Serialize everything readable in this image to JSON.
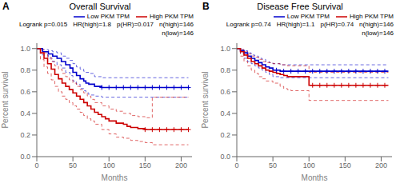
{
  "chart_data": [
    {
      "type": "step",
      "panel_label": "A",
      "title": "Overall Survival",
      "x_label": "Months",
      "y_label": "Percent survival",
      "xlim": [
        0,
        215
      ],
      "ylim": [
        0.0,
        1.05
      ],
      "xticks": [
        0,
        50,
        100,
        150,
        200
      ],
      "yticks": [
        {
          "value": 0.0,
          "label": "0.0"
        },
        0.2,
        0.4,
        0.6,
        0.8,
        {
          "value": 1.0,
          "label": "1.0"
        }
      ],
      "legend": "upper right",
      "annotations": [
        "Logrank p=0.015",
        "HR(high)=1.8",
        "p(HR)=0.017",
        "n(high)=146",
        "n(low)=146"
      ],
      "series": [
        {
          "color": "#0000cc",
          "line_style": "dashed",
          "x": [
            0,
            8,
            16,
            22,
            28,
            34,
            40,
            46,
            50,
            55,
            60,
            65,
            68,
            72,
            80,
            90,
            210
          ],
          "values": [
            1.0,
            0.99,
            0.98,
            0.97,
            0.96,
            0.93,
            0.91,
            0.89,
            0.86,
            0.83,
            0.81,
            0.79,
            0.78,
            0.77,
            0.74,
            0.73,
            0.73
          ]
        },
        {
          "color": "#0000cc",
          "line_style": "dashed",
          "x": [
            0,
            8,
            16,
            22,
            28,
            34,
            40,
            46,
            50,
            55,
            60,
            65,
            68,
            72,
            80,
            90,
            210
          ],
          "values": [
            1.0,
            0.94,
            0.91,
            0.88,
            0.85,
            0.82,
            0.78,
            0.75,
            0.7,
            0.67,
            0.63,
            0.61,
            0.59,
            0.57,
            0.56,
            0.55,
            0.55
          ]
        },
        {
          "color": "#cc0000",
          "line_style": "dashed",
          "x": [
            0,
            5,
            10,
            15,
            20,
            25,
            30,
            35,
            40,
            45,
            50,
            55,
            60,
            65,
            70,
            75,
            80,
            90,
            100,
            110,
            120,
            130,
            140,
            150,
            160,
            210
          ],
          "values": [
            1.0,
            0.99,
            0.96,
            0.92,
            0.88,
            0.84,
            0.81,
            0.77,
            0.74,
            0.71,
            0.68,
            0.65,
            0.62,
            0.59,
            0.56,
            0.53,
            0.5,
            0.47,
            0.44,
            0.42,
            0.4,
            0.38,
            0.37,
            0.36,
            0.55,
            0.55
          ]
        },
        {
          "color": "#cc0000",
          "line_style": "dashed",
          "x": [
            0,
            5,
            10,
            15,
            20,
            25,
            30,
            35,
            40,
            45,
            50,
            55,
            60,
            65,
            70,
            75,
            80,
            90,
            100,
            110,
            120,
            130,
            140,
            150,
            160,
            210
          ],
          "values": [
            1.0,
            0.9,
            0.83,
            0.77,
            0.71,
            0.65,
            0.6,
            0.56,
            0.53,
            0.5,
            0.47,
            0.44,
            0.41,
            0.38,
            0.35,
            0.33,
            0.3,
            0.25,
            0.21,
            0.18,
            0.17,
            0.15,
            0.14,
            0.13,
            0.11,
            0.11
          ]
        },
        {
          "name": "Low PKM TPM",
          "color": "#0000cc",
          "line_style": "solid",
          "x": [
            0,
            8,
            16,
            22,
            28,
            34,
            40,
            46,
            50,
            55,
            60,
            65,
            68,
            72,
            80,
            90,
            210
          ],
          "values": [
            1.0,
            0.97,
            0.95,
            0.93,
            0.91,
            0.88,
            0.85,
            0.82,
            0.78,
            0.75,
            0.72,
            0.7,
            0.68,
            0.67,
            0.65,
            0.64,
            0.64
          ]
        },
        {
          "name": "High PKM TPM",
          "color": "#cc0000",
          "line_style": "solid",
          "x": [
            0,
            5,
            10,
            15,
            20,
            25,
            30,
            35,
            40,
            45,
            50,
            55,
            60,
            65,
            70,
            75,
            80,
            85,
            90,
            95,
            100,
            110,
            120,
            125,
            130,
            140,
            150,
            160,
            210
          ],
          "values": [
            1.0,
            0.96,
            0.91,
            0.86,
            0.81,
            0.76,
            0.72,
            0.68,
            0.65,
            0.62,
            0.59,
            0.56,
            0.53,
            0.5,
            0.47,
            0.44,
            0.41,
            0.39,
            0.37,
            0.35,
            0.33,
            0.31,
            0.3,
            0.28,
            0.27,
            0.26,
            0.25,
            0.25,
            0.25
          ]
        },
        {
          "type": "scatter",
          "marker": "plus",
          "color": "#0000cc",
          "x": [
            90,
            100,
            110,
            120,
            130,
            140,
            150,
            160,
            170,
            180,
            190,
            200,
            210
          ],
          "values": [
            0.64,
            0.64,
            0.64,
            0.64,
            0.64,
            0.64,
            0.64,
            0.64,
            0.64,
            0.64,
            0.64,
            0.64,
            0.64
          ]
        },
        {
          "type": "scatter",
          "marker": "plus",
          "color": "#cc0000",
          "x": [
            150,
            160,
            170,
            180,
            190,
            200,
            210
          ],
          "values": [
            0.25,
            0.25,
            0.25,
            0.25,
            0.25,
            0.25,
            0.25
          ]
        }
      ]
    },
    {
      "type": "step",
      "panel_label": "B",
      "title": "Disease Free Survival",
      "x_label": "Months",
      "y_label": "Percent survival",
      "xlim": [
        0,
        215
      ],
      "ylim": [
        0.0,
        1.05
      ],
      "xticks": [
        0,
        50,
        100,
        150,
        200
      ],
      "yticks": [
        {
          "value": 0.0,
          "label": "0.0"
        },
        0.2,
        0.4,
        0.6,
        0.8,
        {
          "value": 1.0,
          "label": "1.0"
        }
      ],
      "legend": "upper right",
      "annotations": [
        "Logrank p=0.74",
        "HR(high)=1.1",
        "p(HR)=0.74",
        "n(high)=146",
        "n(low)=146"
      ],
      "series": [
        {
          "color": "#0000cc",
          "line_style": "dashed",
          "x": [
            0,
            5,
            10,
            15,
            20,
            25,
            30,
            35,
            40,
            45,
            50,
            60,
            70,
            80,
            90,
            100,
            110,
            120,
            130,
            140,
            150,
            160,
            170,
            180,
            190,
            200,
            210
          ],
          "values": [
            1.0,
            0.99,
            0.98,
            0.96,
            0.94,
            0.93,
            0.91,
            0.9,
            0.88,
            0.87,
            0.86,
            0.85,
            0.85,
            0.85,
            0.85,
            0.85,
            0.85,
            0.85,
            0.85,
            0.85,
            0.85,
            0.85,
            0.85,
            0.85,
            0.85,
            0.85,
            0.85
          ]
        },
        {
          "color": "#0000cc",
          "line_style": "dashed",
          "x": [
            0,
            5,
            10,
            15,
            20,
            25,
            30,
            35,
            40,
            45,
            50,
            60,
            70,
            80,
            90,
            100,
            110,
            120,
            130,
            140,
            150,
            160,
            170,
            180,
            190,
            200,
            210
          ],
          "values": [
            1.0,
            0.95,
            0.91,
            0.88,
            0.86,
            0.84,
            0.82,
            0.8,
            0.78,
            0.76,
            0.74,
            0.73,
            0.73,
            0.73,
            0.73,
            0.73,
            0.73,
            0.73,
            0.73,
            0.73,
            0.73,
            0.73,
            0.73,
            0.73,
            0.73,
            0.73,
            0.73
          ]
        },
        {
          "color": "#cc0000",
          "line_style": "dashed",
          "x": [
            0,
            5,
            10,
            15,
            20,
            25,
            30,
            35,
            40,
            50,
            60,
            70,
            80,
            90,
            100,
            110,
            120,
            130,
            140,
            150,
            160,
            170,
            180,
            190,
            200,
            210
          ],
          "values": [
            1.0,
            0.99,
            0.97,
            0.95,
            0.93,
            0.92,
            0.9,
            0.88,
            0.87,
            0.86,
            0.85,
            0.84,
            0.84,
            0.84,
            0.78,
            0.78,
            0.78,
            0.78,
            0.78,
            0.78,
            0.78,
            0.78,
            0.78,
            0.78,
            0.78,
            0.78
          ]
        },
        {
          "color": "#cc0000",
          "line_style": "dashed",
          "x": [
            0,
            5,
            10,
            15,
            20,
            25,
            30,
            35,
            40,
            50,
            60,
            65,
            70,
            75,
            80,
            90,
            100,
            110,
            120,
            130,
            140,
            150,
            160,
            170,
            180,
            190,
            200,
            210
          ],
          "values": [
            1.0,
            0.93,
            0.88,
            0.84,
            0.8,
            0.77,
            0.74,
            0.72,
            0.7,
            0.68,
            0.65,
            0.63,
            0.62,
            0.61,
            0.61,
            0.61,
            0.52,
            0.52,
            0.52,
            0.52,
            0.52,
            0.52,
            0.52,
            0.52,
            0.52,
            0.52,
            0.52,
            0.52
          ]
        },
        {
          "name": "Low PKM TPM",
          "color": "#0000cc",
          "line_style": "solid",
          "x": [
            0,
            5,
            10,
            15,
            20,
            25,
            30,
            35,
            40,
            45,
            50,
            55,
            60,
            70,
            80,
            90,
            100,
            110,
            120,
            130,
            140,
            150,
            160,
            170,
            180,
            190,
            200,
            210
          ],
          "values": [
            1.0,
            0.98,
            0.96,
            0.93,
            0.91,
            0.89,
            0.87,
            0.85,
            0.83,
            0.82,
            0.8,
            0.8,
            0.79,
            0.79,
            0.79,
            0.79,
            0.79,
            0.79,
            0.79,
            0.79,
            0.79,
            0.79,
            0.79,
            0.79,
            0.79,
            0.79,
            0.79,
            0.79
          ]
        },
        {
          "name": "High PKM TPM",
          "color": "#cc0000",
          "line_style": "solid",
          "x": [
            0,
            5,
            10,
            15,
            20,
            25,
            30,
            35,
            40,
            45,
            50,
            55,
            60,
            65,
            70,
            75,
            80,
            85,
            90,
            95,
            100,
            110,
            120,
            130,
            140,
            150,
            160,
            170,
            180,
            190,
            200,
            210
          ],
          "values": [
            1.0,
            0.97,
            0.94,
            0.91,
            0.88,
            0.86,
            0.84,
            0.82,
            0.8,
            0.79,
            0.78,
            0.77,
            0.76,
            0.75,
            0.74,
            0.74,
            0.74,
            0.74,
            0.74,
            0.74,
            0.66,
            0.66,
            0.66,
            0.66,
            0.66,
            0.66,
            0.66,
            0.66,
            0.66,
            0.66,
            0.66,
            0.66
          ]
        },
        {
          "type": "scatter",
          "marker": "plus",
          "color": "#0000cc",
          "x": [
            55,
            65,
            75,
            85,
            95,
            105,
            115,
            125,
            135,
            145,
            155,
            165,
            175,
            185,
            195,
            205
          ],
          "values": [
            0.8,
            0.79,
            0.79,
            0.79,
            0.79,
            0.79,
            0.79,
            0.79,
            0.79,
            0.79,
            0.79,
            0.79,
            0.79,
            0.79,
            0.79,
            0.79
          ]
        },
        {
          "type": "scatter",
          "marker": "plus",
          "color": "#cc0000",
          "x": [
            105,
            115,
            125,
            135,
            145,
            155,
            165,
            175,
            185,
            195,
            205
          ],
          "values": [
            0.66,
            0.66,
            0.66,
            0.66,
            0.66,
            0.66,
            0.66,
            0.66,
            0.66,
            0.66,
            0.66
          ]
        }
      ]
    }
  ]
}
